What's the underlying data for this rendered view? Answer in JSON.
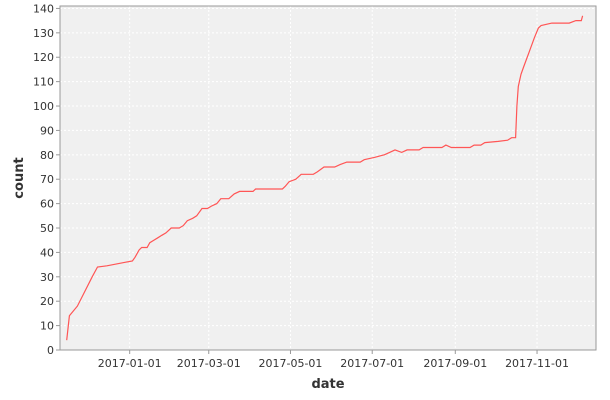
{
  "chart_data": {
    "type": "line",
    "title": "",
    "xlabel": "date",
    "ylabel": "count",
    "x_axis_type": "date",
    "xlim": [
      "2016-11-10",
      "2017-12-15"
    ],
    "ylim": [
      0,
      141
    ],
    "x_ticks": [
      "2017-01-01",
      "2017-03-01",
      "2017-05-01",
      "2017-07-01",
      "2017-09-01",
      "2017-11-01"
    ],
    "y_ticks": [
      0,
      10,
      20,
      30,
      40,
      50,
      60,
      70,
      80,
      90,
      100,
      110,
      120,
      130,
      140
    ],
    "grid": true,
    "legend": "none",
    "colors": {
      "line": "#ff5555",
      "plot_bg": "#f0f0f0",
      "grid": "#ffffff",
      "frame": "#999999"
    },
    "series": [
      {
        "points": [
          [
            "2016-11-15",
            4
          ],
          [
            "2016-11-17",
            14
          ],
          [
            "2016-11-23",
            18
          ],
          [
            "2016-12-04",
            30
          ],
          [
            "2016-12-08",
            34
          ],
          [
            "2016-12-15",
            34.5
          ],
          [
            "2016-12-29",
            36
          ],
          [
            "2017-01-03",
            36.5
          ],
          [
            "2017-01-05",
            38
          ],
          [
            "2017-01-08",
            41
          ],
          [
            "2017-01-10",
            42
          ],
          [
            "2017-01-14",
            42
          ],
          [
            "2017-01-16",
            44
          ],
          [
            "2017-01-19",
            45
          ],
          [
            "2017-01-22",
            46
          ],
          [
            "2017-01-25",
            47
          ],
          [
            "2017-01-28",
            48
          ],
          [
            "2017-02-01",
            50
          ],
          [
            "2017-02-07",
            50
          ],
          [
            "2017-02-10",
            51
          ],
          [
            "2017-02-13",
            53
          ],
          [
            "2017-02-17",
            54
          ],
          [
            "2017-02-20",
            55
          ],
          [
            "2017-02-24",
            58
          ],
          [
            "2017-02-28",
            58
          ],
          [
            "2017-03-03",
            59
          ],
          [
            "2017-03-07",
            60
          ],
          [
            "2017-03-10",
            62
          ],
          [
            "2017-03-16",
            62
          ],
          [
            "2017-03-20",
            64
          ],
          [
            "2017-03-24",
            65
          ],
          [
            "2017-04-03",
            65
          ],
          [
            "2017-04-05",
            66
          ],
          [
            "2017-04-15",
            66
          ],
          [
            "2017-04-25",
            66
          ],
          [
            "2017-04-27",
            67
          ],
          [
            "2017-04-30",
            69
          ],
          [
            "2017-05-05",
            70
          ],
          [
            "2017-05-09",
            72
          ],
          [
            "2017-05-18",
            72
          ],
          [
            "2017-05-21",
            73
          ],
          [
            "2017-05-26",
            75
          ],
          [
            "2017-06-03",
            75
          ],
          [
            "2017-06-07",
            76
          ],
          [
            "2017-06-12",
            77
          ],
          [
            "2017-06-22",
            77
          ],
          [
            "2017-06-25",
            78
          ],
          [
            "2017-07-03",
            79
          ],
          [
            "2017-07-10",
            80
          ],
          [
            "2017-07-14",
            81
          ],
          [
            "2017-07-18",
            82
          ],
          [
            "2017-07-23",
            81
          ],
          [
            "2017-07-27",
            82
          ],
          [
            "2017-08-05",
            82
          ],
          [
            "2017-08-08",
            83
          ],
          [
            "2017-08-15",
            83
          ],
          [
            "2017-08-22",
            83
          ],
          [
            "2017-08-25",
            84
          ],
          [
            "2017-08-29",
            83
          ],
          [
            "2017-09-12",
            83
          ],
          [
            "2017-09-15",
            84
          ],
          [
            "2017-09-20",
            84
          ],
          [
            "2017-09-23",
            85
          ],
          [
            "2017-10-03",
            85.5
          ],
          [
            "2017-10-10",
            86
          ],
          [
            "2017-10-13",
            87
          ],
          [
            "2017-10-16",
            87
          ],
          [
            "2017-10-17",
            100
          ],
          [
            "2017-10-18",
            108
          ],
          [
            "2017-10-20",
            113
          ],
          [
            "2017-10-22",
            116
          ],
          [
            "2017-10-26",
            122
          ],
          [
            "2017-10-30",
            128
          ],
          [
            "2017-11-02",
            132
          ],
          [
            "2017-11-04",
            133
          ],
          [
            "2017-11-12",
            134
          ],
          [
            "2017-11-25",
            134
          ],
          [
            "2017-11-30",
            135
          ],
          [
            "2017-12-04",
            135
          ],
          [
            "2017-12-05",
            137
          ]
        ]
      }
    ]
  }
}
